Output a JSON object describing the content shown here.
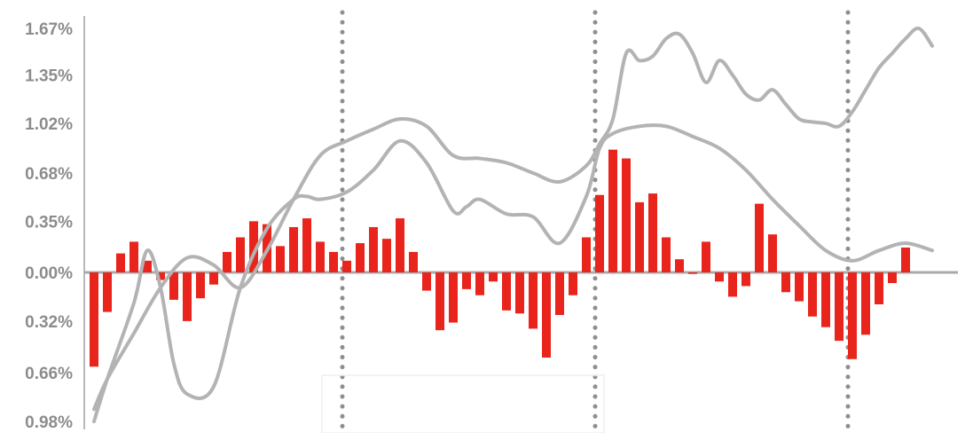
{
  "chart_data": {
    "type": "bar",
    "xlabel": "",
    "ylabel": "",
    "ylim": [
      -0.98,
      1.67
    ],
    "grid": false,
    "y_tick_labels": [
      "1.67%",
      "1.35%",
      "1.02%",
      "0.68%",
      "0.35%",
      "0.00%",
      "0.32%",
      "0.66%",
      "0.98%"
    ],
    "y_tick_values": [
      1.67,
      1.35,
      1.02,
      0.68,
      0.35,
      0.0,
      -0.32,
      -0.66,
      -0.98
    ],
    "vertical_marker_x": [
      19,
      38,
      57
    ],
    "series": [
      {
        "type": "bar",
        "values": [
          -0.62,
          -0.26,
          0.13,
          0.21,
          0.08,
          -0.05,
          -0.18,
          -0.32,
          -0.17,
          -0.08,
          0.14,
          0.24,
          0.35,
          0.33,
          0.18,
          0.31,
          0.37,
          0.21,
          0.14,
          0.08,
          0.2,
          0.31,
          0.23,
          0.37,
          0.14,
          -0.12,
          -0.38,
          -0.33,
          -0.11,
          -0.15,
          -0.06,
          -0.25,
          -0.27,
          -0.37,
          -0.56,
          -0.28,
          -0.15,
          0.24,
          0.53,
          0.84,
          0.78,
          0.48,
          0.54,
          0.24,
          0.09,
          -0.01,
          0.21,
          -0.06,
          -0.16,
          -0.09,
          0.47,
          0.26,
          -0.13,
          -0.19,
          -0.29,
          -0.36,
          -0.45,
          -0.57,
          -0.41,
          -0.21,
          -0.07,
          0.17
        ]
      },
      {
        "type": "line",
        "x": [
          0,
          1,
          3,
          5,
          7,
          9,
          11,
          13,
          15,
          17,
          19,
          21,
          23,
          25,
          27,
          29,
          31,
          33,
          35,
          37,
          38,
          39,
          40,
          41,
          42,
          43,
          44,
          45,
          46,
          47,
          48,
          49,
          50,
          51,
          52,
          53,
          54,
          55,
          56,
          57,
          58,
          59,
          60,
          61,
          62,
          63
        ],
        "y": [
          -0.9,
          -0.7,
          -0.4,
          -0.1,
          0.1,
          0.05,
          -0.1,
          0.15,
          0.5,
          0.8,
          0.9,
          0.98,
          1.05,
          1.0,
          0.8,
          0.78,
          0.75,
          0.68,
          0.62,
          0.73,
          0.88,
          1.05,
          1.5,
          1.45,
          1.48,
          1.6,
          1.63,
          1.5,
          1.3,
          1.45,
          1.35,
          1.22,
          1.18,
          1.25,
          1.15,
          1.05,
          1.03,
          1.02,
          1.0,
          1.1,
          1.25,
          1.4,
          1.5,
          1.6,
          1.67,
          1.55
        ]
      },
      {
        "type": "line",
        "x": [
          0,
          1,
          3,
          4,
          5,
          6,
          7,
          9,
          11,
          13,
          15,
          16,
          17,
          19,
          21,
          23,
          25,
          27,
          28,
          29,
          31,
          33,
          35,
          37,
          38,
          39,
          41,
          43,
          45,
          47,
          49,
          51,
          53,
          55,
          57,
          59,
          61,
          63
        ],
        "y": [
          -0.98,
          -0.7,
          -0.2,
          0.15,
          -0.1,
          -0.6,
          -0.8,
          -0.75,
          -0.1,
          0.3,
          0.5,
          0.52,
          0.5,
          0.55,
          0.7,
          0.9,
          0.75,
          0.42,
          0.45,
          0.5,
          0.4,
          0.38,
          0.2,
          0.52,
          0.85,
          0.95,
          1.0,
          1.0,
          0.93,
          0.85,
          0.7,
          0.5,
          0.32,
          0.15,
          0.08,
          0.15,
          0.2,
          0.15
        ]
      }
    ]
  }
}
